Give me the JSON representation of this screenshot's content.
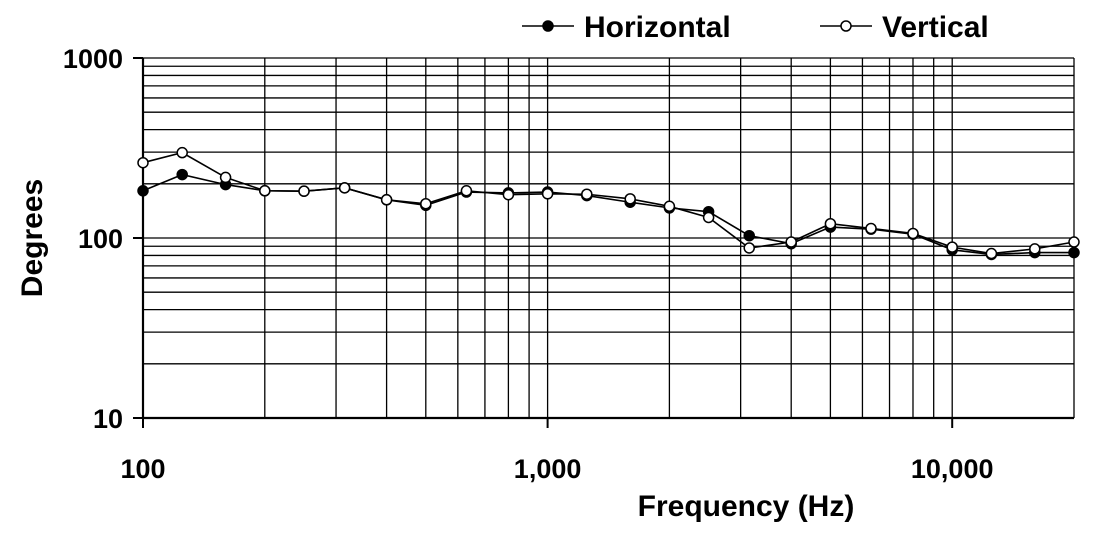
{
  "chart_data": {
    "type": "line",
    "xlabel": "Frequency (Hz)",
    "ylabel": "Degrees",
    "x_scale": "log",
    "y_scale": "log",
    "xlim": [
      100,
      20000
    ],
    "ylim": [
      10,
      1000
    ],
    "grid": true,
    "legend_position": "top-right",
    "x_tick_labels": [
      "100",
      "1,000",
      "10,000"
    ],
    "y_tick_labels": [
      "10",
      "100",
      "1000"
    ],
    "x": [
      100,
      125,
      160,
      200,
      250,
      315,
      400,
      500,
      630,
      800,
      1000,
      1250,
      1600,
      2000,
      2500,
      3150,
      4000,
      5000,
      6300,
      8000,
      10000,
      12500,
      16000,
      20000
    ],
    "series": [
      {
        "name": "Horizontal",
        "marker": "filled-circle",
        "color": "#000000",
        "values": [
          183,
          225,
          198,
          183,
          182,
          190,
          163,
          152,
          180,
          178,
          180,
          172,
          158,
          147,
          140,
          103,
          93,
          115,
          112,
          105,
          86,
          81,
          83,
          83
        ]
      },
      {
        "name": "Vertical",
        "marker": "open-circle",
        "color": "#000000",
        "values": [
          262,
          298,
          217,
          183,
          182,
          190,
          163,
          155,
          183,
          174,
          176,
          175,
          165,
          150,
          130,
          88,
          95,
          120,
          113,
          106,
          89,
          82,
          87,
          95
        ]
      }
    ]
  }
}
